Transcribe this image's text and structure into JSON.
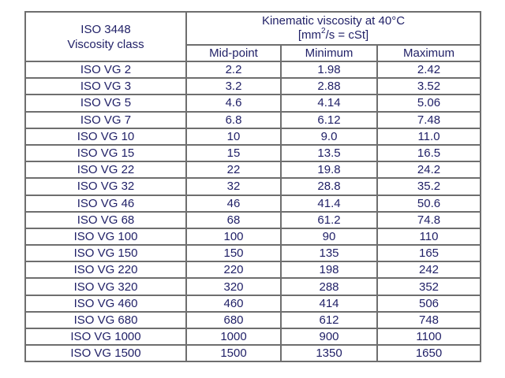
{
  "table": {
    "header": {
      "class_line1": "ISO 3448",
      "class_line2": "Viscosity class",
      "kv_line1": "Kinematic viscosity at 40°C",
      "kv_unit_prefix": "[mm",
      "kv_unit_sup": "2",
      "kv_unit_suffix": "/s = cSt]",
      "sub": {
        "mid": "Mid-point",
        "min": "Minimum",
        "max": "Maximum"
      }
    },
    "rows": [
      {
        "grade": "ISO VG 2",
        "mid": "2.2",
        "min": "1.98",
        "max": "2.42"
      },
      {
        "grade": "ISO VG 3",
        "mid": "3.2",
        "min": "2.88",
        "max": "3.52"
      },
      {
        "grade": "ISO VG 5",
        "mid": "4.6",
        "min": "4.14",
        "max": "5.06"
      },
      {
        "grade": "ISO VG 7",
        "mid": "6.8",
        "min": "6.12",
        "max": "7.48"
      },
      {
        "grade": "ISO VG 10",
        "mid": "10",
        "min": "9.0",
        "max": "11.0"
      },
      {
        "grade": "ISO VG 15",
        "mid": "15",
        "min": "13.5",
        "max": "16.5"
      },
      {
        "grade": "ISO VG 22",
        "mid": "22",
        "min": "19.8",
        "max": "24.2"
      },
      {
        "grade": "ISO VG 32",
        "mid": "32",
        "min": "28.8",
        "max": "35.2"
      },
      {
        "grade": "ISO VG 46",
        "mid": "46",
        "min": "41.4",
        "max": "50.6"
      },
      {
        "grade": "ISO VG 68",
        "mid": "68",
        "min": "61.2",
        "max": "74.8"
      },
      {
        "grade": "ISO VG 100",
        "mid": "100",
        "min": "90",
        "max": "110"
      },
      {
        "grade": "ISO VG 150",
        "mid": "150",
        "min": "135",
        "max": "165"
      },
      {
        "grade": "ISO VG 220",
        "mid": "220",
        "min": "198",
        "max": "242"
      },
      {
        "grade": "ISO VG 320",
        "mid": "320",
        "min": "288",
        "max": "352"
      },
      {
        "grade": "ISO VG 460",
        "mid": "460",
        "min": "414",
        "max": "506"
      },
      {
        "grade": "ISO VG 680",
        "mid": "680",
        "min": "612",
        "max": "748"
      },
      {
        "grade": "ISO VG 1000",
        "mid": "1000",
        "min": "900",
        "max": "1100"
      },
      {
        "grade": "ISO VG 1500",
        "mid": "1500",
        "min": "1350",
        "max": "1650"
      }
    ]
  },
  "colors": {
    "text": "#1f1f66",
    "border": "#6e6e6e",
    "background": "#ffffff"
  }
}
